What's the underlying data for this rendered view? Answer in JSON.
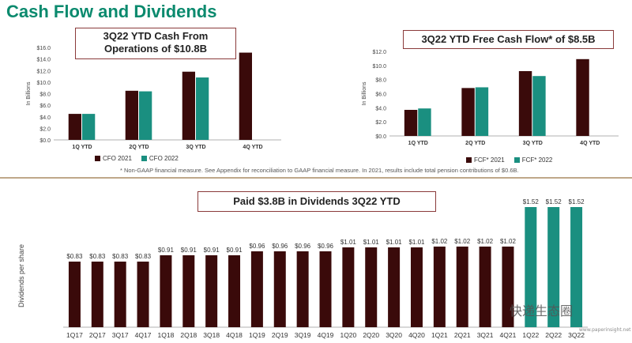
{
  "page_title": "Cash Flow and Dividends",
  "colors": {
    "title": "#0b8a6e",
    "dark": "#3a0a0a",
    "teal": "#1a8f80",
    "callout_border": "#8a3a3a"
  },
  "callouts": {
    "cfo": "3Q22 YTD Cash From Operations of $10.8B",
    "fcf": "3Q22 YTD Free Cash Flow* of $8.5B",
    "div": "Paid $3.8B in Dividends 3Q22 YTD"
  },
  "footnote": "* Non-GAAP financial measure. See Appendix for reconciliation to GAAP financial measure. In 2021, results include total pension contributions of $0.6B.",
  "watermark": {
    "text": "快递生态圈",
    "sub": "www.paperinsight.net"
  },
  "chart_data": [
    {
      "type": "bar",
      "categories": [
        "1Q YTD",
        "2Q YTD",
        "3Q YTD",
        "4Q YTD"
      ],
      "series": [
        {
          "name": "CFO 2021",
          "values": [
            4.5,
            8.5,
            11.8,
            15.1
          ]
        },
        {
          "name": "CFO 2022",
          "values": [
            4.5,
            8.4,
            10.8,
            null
          ]
        }
      ],
      "ylabel": "In Billions",
      "yticks": [
        "$0.0",
        "$2.0",
        "$4.0",
        "$6.0",
        "$8.0",
        "$10.0",
        "$12.0",
        "$14.0",
        "$16.0"
      ],
      "ylim": [
        0,
        16
      ],
      "legend": "bottom"
    },
    {
      "type": "bar",
      "categories": [
        "1Q YTD",
        "2Q YTD",
        "3Q YTD",
        "4Q YTD"
      ],
      "series": [
        {
          "name": "FCF* 2021",
          "values": [
            3.7,
            6.8,
            9.2,
            10.9
          ]
        },
        {
          "name": "FCF* 2022",
          "values": [
            3.9,
            6.9,
            8.5,
            null
          ]
        }
      ],
      "ylabel": "In Billions",
      "yticks": [
        "$0.0",
        "$2.0",
        "$4.0",
        "$6.0",
        "$8.0",
        "$10.0",
        "$12.0"
      ],
      "ylim": [
        0,
        12
      ],
      "legend": "bottom"
    },
    {
      "type": "bar",
      "categories": [
        "1Q17",
        "2Q17",
        "3Q17",
        "4Q17",
        "1Q18",
        "2Q18",
        "3Q18",
        "4Q18",
        "1Q19",
        "2Q19",
        "3Q19",
        "4Q19",
        "1Q20",
        "2Q20",
        "3Q20",
        "4Q20",
        "1Q21",
        "2Q21",
        "3Q21",
        "4Q21",
        "1Q22",
        "2Q22",
        "3Q22"
      ],
      "values": [
        0.83,
        0.83,
        0.83,
        0.83,
        0.91,
        0.91,
        0.91,
        0.91,
        0.96,
        0.96,
        0.96,
        0.96,
        1.01,
        1.01,
        1.01,
        1.01,
        1.02,
        1.02,
        1.02,
        1.02,
        1.52,
        1.52,
        1.52
      ],
      "labels": [
        "$0.83",
        "$0.83",
        "$0.83",
        "$0.83",
        "$0.91",
        "$0.91",
        "$0.91",
        "$0.91",
        "$0.96",
        "$0.96",
        "$0.96",
        "$0.96",
        "$1.01",
        "$1.01",
        "$1.01",
        "$1.01",
        "$1.02",
        "$1.02",
        "$1.02",
        "$1.02",
        "$1.52",
        "$1.52",
        "$1.52"
      ],
      "ylabel": "Dividends per share",
      "highlight_from_index": 20
    }
  ]
}
